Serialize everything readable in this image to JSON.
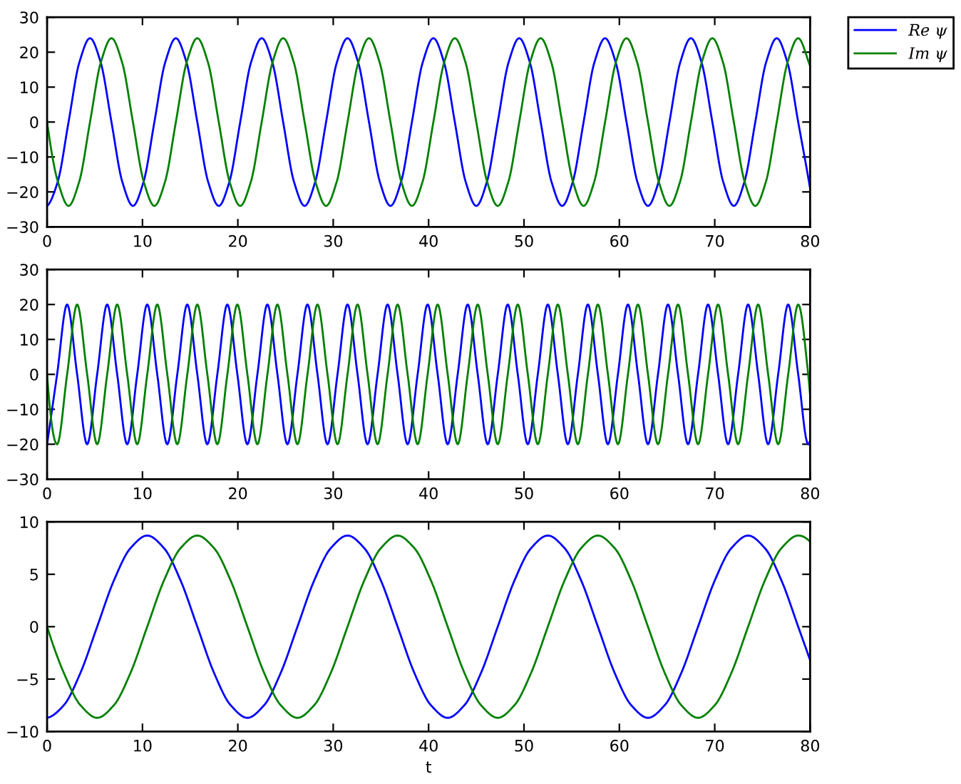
{
  "chart_data": [
    {
      "type": "line",
      "legend": "top right",
      "x": [
        0,
        1.125,
        2.25,
        3.375,
        4.5,
        5.625,
        6.75,
        7.875,
        9,
        10.125,
        11.25,
        12.375,
        13.5,
        14.625,
        15.75,
        16.875,
        18,
        19.125,
        20.25,
        21.375,
        22.5,
        23.625,
        24.75,
        25.875,
        27,
        28.125,
        29.25,
        30.375,
        31.5,
        32.625,
        33.75,
        34.875,
        36,
        37.125,
        38.25,
        39.375,
        40.5,
        41.625,
        42.75,
        43.875,
        45,
        46.125,
        47.25,
        48.375,
        49.5,
        50.625,
        51.75,
        52.875,
        54,
        55.125,
        56.25,
        57.375,
        58.5,
        59.625,
        60.75,
        61.875,
        63,
        64.125,
        65.25,
        66.375,
        67.5,
        68.625,
        69.75,
        70.875,
        72,
        73.125,
        74.25,
        75.375,
        76.5,
        77.625,
        78.75,
        79.875,
        80
      ],
      "series": [
        {
          "name": "Re ψ",
          "color": "#0000ff",
          "values": [
            -24,
            -17,
            0,
            17,
            24,
            17,
            0,
            -17,
            -24,
            -17,
            0,
            17,
            24,
            17,
            0,
            -17,
            -24,
            -17,
            0,
            17,
            24,
            17,
            0,
            -17,
            -24,
            -17,
            0,
            17,
            24,
            17,
            0,
            -17,
            -24,
            -17,
            0,
            17,
            24,
            17,
            0,
            -17,
            -24,
            -17,
            0,
            17,
            24,
            17,
            0,
            -17,
            -24,
            -17,
            0,
            17,
            24,
            17,
            0,
            -17,
            -24,
            -17,
            0,
            17,
            24,
            17,
            0,
            -17,
            -24,
            -17,
            0,
            17,
            24,
            17,
            0,
            -17,
            -19
          ]
        },
        {
          "name": "Im ψ",
          "color": "#008000",
          "values": [
            0,
            -17,
            -24,
            -17,
            0,
            17,
            24,
            17,
            0,
            -17,
            -24,
            -17,
            0,
            17,
            24,
            17,
            0,
            -17,
            -24,
            -17,
            0,
            17,
            24,
            17,
            0,
            -17,
            -24,
            -17,
            0,
            17,
            24,
            17,
            0,
            -17,
            -24,
            -17,
            0,
            17,
            24,
            17,
            0,
            -17,
            -24,
            -17,
            0,
            17,
            24,
            17,
            0,
            -17,
            -24,
            -17,
            0,
            17,
            24,
            17,
            0,
            -17,
            -24,
            -17,
            0,
            17,
            24,
            17,
            0,
            -17,
            -24,
            -17,
            0,
            17,
            24,
            17,
            16
          ]
        }
      ],
      "xlim": [
        0,
        80
      ],
      "ylim": [
        -30,
        30
      ],
      "xticks": [
        0,
        10,
        20,
        30,
        40,
        50,
        60,
        70,
        80
      ],
      "yticks": [
        -30,
        -20,
        -10,
        0,
        10,
        20,
        30
      ]
    },
    {
      "type": "line",
      "x": [
        0,
        1.05,
        2.1,
        3.15,
        4.2,
        5.25,
        6.3,
        7.35,
        8.4,
        9.45,
        10.5,
        11.55,
        12.6,
        13.65,
        14.7,
        15.75,
        16.8,
        17.85,
        18.9,
        19.95,
        21,
        22.05,
        23.1,
        24.15,
        25.2,
        26.25,
        27.3,
        28.35,
        29.4,
        30.45,
        31.5,
        32.55,
        33.6,
        34.65,
        35.7,
        36.75,
        37.8,
        38.85,
        39.9,
        40.95,
        42,
        43.05,
        44.1,
        45.15,
        46.2,
        47.25,
        48.3,
        49.35,
        50.4,
        51.45,
        52.5,
        53.55,
        54.6,
        55.65,
        56.7,
        57.75,
        58.8,
        59.85,
        60.9,
        61.95,
        63,
        64.05,
        65.1,
        66.15,
        67.2,
        68.25,
        69.3,
        70.35,
        71.4,
        72.45,
        73.5,
        74.55,
        75.6,
        76.65,
        77.7,
        78.75,
        79.8,
        80
      ],
      "series": [
        {
          "color": "#0000ff",
          "values": [
            -20,
            0,
            20,
            0,
            -20,
            0,
            20,
            0,
            -20,
            0,
            20,
            0,
            -20,
            0,
            20,
            0,
            -20,
            0,
            20,
            0,
            -20,
            0,
            20,
            0,
            -20,
            0,
            20,
            0,
            -20,
            0,
            20,
            0,
            -20,
            0,
            20,
            0,
            -20,
            0,
            20,
            0,
            -20,
            0,
            20,
            0,
            -20,
            0,
            20,
            0,
            -20,
            0,
            20,
            0,
            -20,
            0,
            20,
            0,
            -20,
            0,
            20,
            0,
            -20,
            0,
            20,
            0,
            -20,
            0,
            20,
            0,
            -20,
            0,
            20,
            0,
            -20,
            0,
            20,
            0,
            -20,
            -19
          ]
        },
        {
          "color": "#008000",
          "values": [
            0,
            -20,
            0,
            20,
            0,
            -20,
            0,
            20,
            0,
            -20,
            0,
            20,
            0,
            -20,
            0,
            20,
            0,
            -20,
            0,
            20,
            0,
            -20,
            0,
            20,
            0,
            -20,
            0,
            20,
            0,
            -20,
            0,
            20,
            0,
            -20,
            0,
            20,
            0,
            -20,
            0,
            20,
            0,
            -20,
            0,
            20,
            0,
            -20,
            0,
            20,
            0,
            -20,
            0,
            20,
            0,
            -20,
            0,
            20,
            0,
            -20,
            0,
            20,
            0,
            -20,
            0,
            20,
            0,
            -20,
            0,
            20,
            0,
            -20,
            0,
            20,
            0,
            -20,
            0,
            20,
            0,
            -6
          ]
        }
      ],
      "xlim": [
        0,
        80
      ],
      "ylim": [
        -30,
        30
      ],
      "xticks": [
        0,
        10,
        20,
        30,
        40,
        50,
        60,
        70,
        80
      ],
      "yticks": [
        -30,
        -20,
        -10,
        0,
        10,
        20,
        30
      ]
    },
    {
      "type": "line",
      "xlabel": "t",
      "x": [
        0,
        1.75,
        3.5,
        5.25,
        7,
        8.75,
        10.5,
        12.25,
        14,
        15.75,
        17.5,
        19.25,
        21,
        22.75,
        24.5,
        26.25,
        28,
        29.75,
        31.5,
        33.25,
        35,
        36.75,
        38.5,
        40.25,
        42,
        43.75,
        45.5,
        47.25,
        49,
        50.75,
        52.5,
        54.25,
        56,
        57.75,
        59.5,
        61.25,
        63,
        64.75,
        66.5,
        68.25,
        70,
        71.75,
        73.5,
        75.25,
        77,
        78.75,
        80
      ],
      "series": [
        {
          "color": "#0000ff",
          "values": [
            -8.7,
            -7.5,
            -4.4,
            0,
            4.4,
            7.5,
            8.7,
            7.5,
            4.4,
            0,
            -4.4,
            -7.5,
            -8.7,
            -7.5,
            -4.4,
            0,
            4.4,
            7.5,
            8.7,
            7.5,
            4.4,
            0,
            -4.4,
            -7.5,
            -8.7,
            -7.5,
            -4.4,
            0,
            4.4,
            7.5,
            8.7,
            7.5,
            4.4,
            0,
            -4.4,
            -7.5,
            -8.7,
            -7.5,
            -4.4,
            0,
            4.4,
            7.5,
            8.7,
            7.5,
            4.4,
            0,
            -3.2
          ]
        },
        {
          "color": "#008000",
          "values": [
            0,
            -4.4,
            -7.5,
            -8.7,
            -7.5,
            -4.4,
            0,
            4.4,
            7.5,
            8.7,
            7.5,
            4.4,
            0,
            -4.4,
            -7.5,
            -8.7,
            -7.5,
            -4.4,
            0,
            4.4,
            7.5,
            8.7,
            7.5,
            4.4,
            0,
            -4.4,
            -7.5,
            -8.7,
            -7.5,
            -4.4,
            0,
            4.4,
            7.5,
            8.7,
            7.5,
            4.4,
            0,
            -4.4,
            -7.5,
            -8.7,
            -7.5,
            -4.4,
            0,
            4.4,
            7.5,
            8.7,
            8.1
          ]
        }
      ],
      "xlim": [
        0,
        80
      ],
      "ylim": [
        -10,
        10
      ],
      "xticks": [
        0,
        10,
        20,
        30,
        40,
        50,
        60,
        70,
        80
      ],
      "yticks": [
        -10,
        -5,
        0,
        5,
        10
      ]
    }
  ]
}
